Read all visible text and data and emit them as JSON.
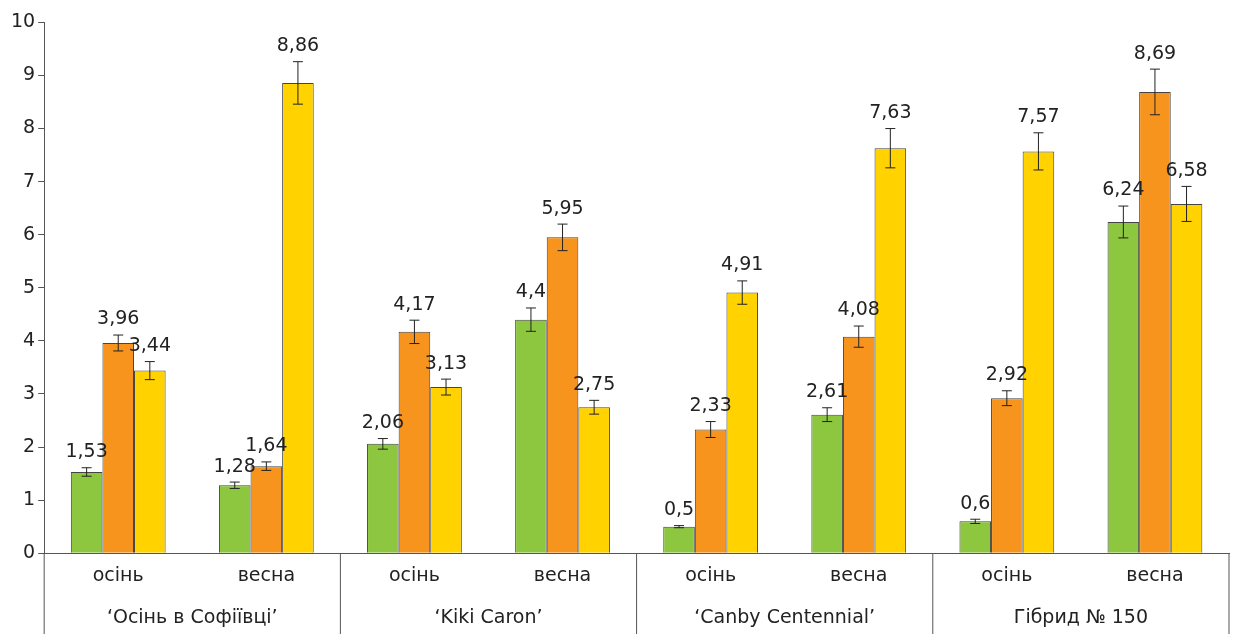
{
  "chart_data": {
    "type": "bar",
    "categories": [
      "осінь",
      "весна",
      "осінь",
      "весна",
      "осінь",
      "весна",
      "осінь",
      "весна"
    ],
    "series": [
      {
        "color": "#8dc63f",
        "values": [
          1.53,
          1.28,
          2.06,
          4.4,
          0.5,
          2.61,
          0.6,
          6.24
        ],
        "errors": [
          0.08,
          0.06,
          0.1,
          0.22,
          0.02,
          0.13,
          0.04,
          0.3
        ],
        "value_labels": [
          "1,53",
          "1,28",
          "2,06",
          "4,4",
          "0,5",
          "2,61",
          "0,6",
          "6,24"
        ]
      },
      {
        "color": "#f7941d",
        "values": [
          3.96,
          1.64,
          4.17,
          5.95,
          2.33,
          4.08,
          2.92,
          8.69
        ],
        "errors": [
          0.15,
          0.08,
          0.22,
          0.25,
          0.15,
          0.2,
          0.14,
          0.43
        ],
        "value_labels": [
          "3,96",
          "1,64",
          "4,17",
          "5,95",
          "2,33",
          "4,08",
          "2,92",
          "8,69"
        ]
      },
      {
        "color": "#ffd200",
        "values": [
          3.44,
          8.86,
          3.13,
          2.75,
          4.91,
          7.63,
          7.57,
          6.58
        ],
        "errors": [
          0.17,
          0.4,
          0.15,
          0.13,
          0.22,
          0.37,
          0.35,
          0.33
        ],
        "value_labels": [
          "3,44",
          "8,86",
          "3,13",
          "2,75",
          "4,91",
          "7,63",
          "7,57",
          "6,58"
        ]
      }
    ],
    "ylim": [
      0,
      10
    ],
    "yticks": [
      0,
      1,
      2,
      3,
      4,
      5,
      6,
      7,
      8,
      9,
      10
    ],
    "annotations": [
      "‘Осінь в Софіївці’",
      "‘Kiki Caron’",
      "‘Canby Centennial’",
      "Гібрид № 150"
    ]
  }
}
